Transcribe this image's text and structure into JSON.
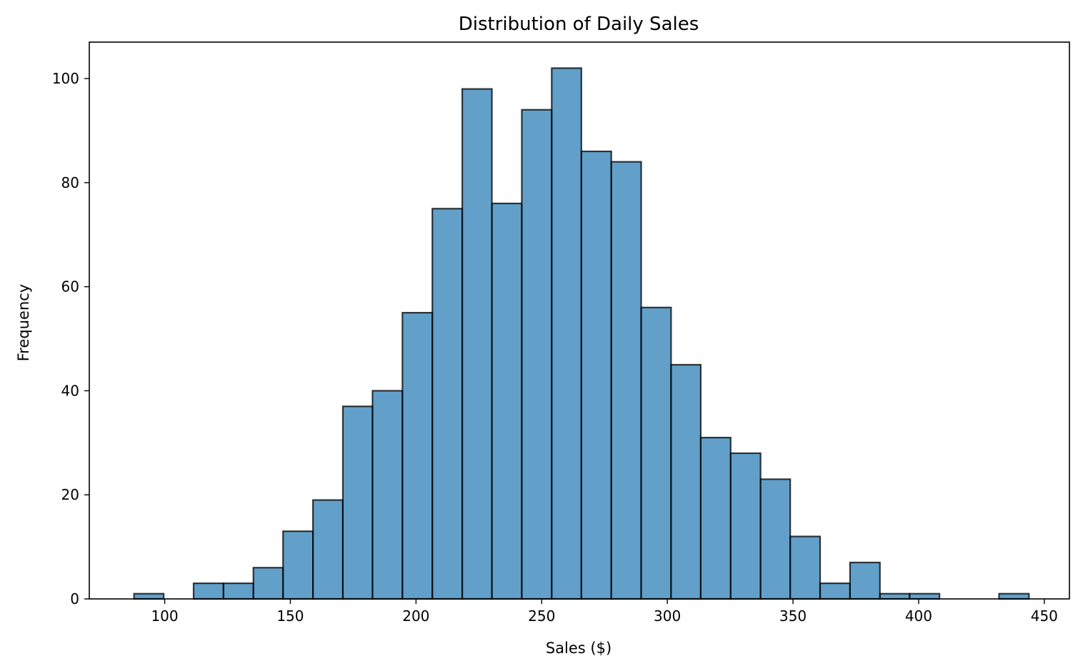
{
  "chart_data": {
    "type": "bar",
    "subtype": "histogram",
    "title": "Distribution of Daily Sales",
    "xlabel": "Sales ($)",
    "ylabel": "Frequency",
    "xlim": [
      70,
      460
    ],
    "ylim": [
      0,
      107
    ],
    "bin_edges": [
      87.8,
      99.6,
      111.5,
      123.4,
      135.3,
      147.1,
      159.0,
      170.9,
      182.7,
      194.6,
      206.5,
      218.4,
      230.2,
      242.1,
      254.0,
      265.8,
      277.7,
      289.6,
      301.5,
      313.3,
      325.2,
      337.1,
      348.9,
      360.8,
      372.7,
      384.6,
      396.4,
      408.3,
      420.2,
      432.0,
      443.9
    ],
    "values": [
      1,
      0,
      3,
      3,
      6,
      13,
      19,
      37,
      40,
      55,
      75,
      98,
      76,
      94,
      102,
      86,
      84,
      56,
      45,
      31,
      28,
      23,
      12,
      3,
      7,
      1,
      1,
      0,
      0,
      1
    ],
    "x_ticks": [
      100,
      150,
      200,
      250,
      300,
      350,
      400,
      450
    ],
    "y_ticks": [
      0,
      20,
      40,
      60,
      80,
      100
    ],
    "x_tick_labels": [
      "100",
      "150",
      "200",
      "250",
      "300",
      "350",
      "400",
      "450"
    ],
    "y_tick_labels": [
      "0",
      "20",
      "40",
      "60",
      "80",
      "100"
    ],
    "grid": false,
    "colors": {
      "bar_fill": "#1f77b4",
      "bar_edge": "#000000"
    },
    "bar_opacity": 0.7
  }
}
